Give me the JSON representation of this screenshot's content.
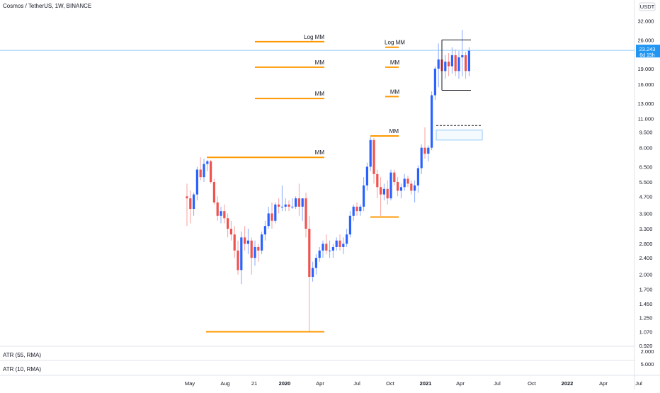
{
  "header": {
    "title": "Cosmos / TetherUS, 1W, BINANCE"
  },
  "price_scale": {
    "currency": "USDT",
    "current_price": "23.243",
    "countdown": "6d 15h",
    "tick_labels": [
      "32.000",
      "26.000",
      "19.000",
      "16.000",
      "13.000",
      "11.000",
      "9.500",
      "8.000",
      "6.500",
      "5.500",
      "4.700",
      "3.900",
      "3.300",
      "2.800",
      "2.400",
      "2.000",
      "1.700",
      "1.450",
      "1.250",
      "1.070",
      "0.920"
    ]
  },
  "indicators": [
    {
      "label": "ATR (55, RMA)",
      "scale_value": "2.000"
    },
    {
      "label": "ATR (10, RMA)",
      "scale_value": "5.000"
    }
  ],
  "time_axis": {
    "labels": [
      "May",
      "Aug",
      "21",
      "2020",
      "Apr",
      "Jul",
      "Oct",
      "2021",
      "Apr",
      "Jul",
      "Oct",
      "2022",
      "Apr",
      "Jul"
    ]
  },
  "annotations": [
    {
      "label": "Log MM",
      "price": 25.5
    },
    {
      "label": "MM",
      "price": 19.3
    },
    {
      "label": "MM",
      "price": 13.7
    },
    {
      "label": "MM",
      "price": 7.2
    },
    {
      "label": "Log MM",
      "price": 24.0
    },
    {
      "label": "MM",
      "price": 19.3
    },
    {
      "label": "MM",
      "price": 14.0
    },
    {
      "label": "MM",
      "price": 9.1
    }
  ],
  "colors": {
    "up": "#2962ff",
    "down": "#ef5350",
    "level": "#ff9800",
    "price_line": "#90caf9",
    "box": "#131722"
  },
  "chart_data": {
    "type": "candlestick",
    "title": "Cosmos / TetherUS, 1W, BINANCE",
    "scale": "log",
    "ylim": [
      0.92,
      35
    ],
    "xlabel": "",
    "ylabel": "",
    "candles": [
      [
        4.7,
        5.4,
        3.4,
        4.6
      ],
      [
        4.6,
        5.0,
        3.5,
        4.1
      ],
      [
        4.1,
        4.9,
        3.8,
        4.8
      ],
      [
        4.8,
        6.5,
        4.5,
        6.3
      ],
      [
        6.3,
        7.2,
        5.6,
        5.8
      ],
      [
        5.8,
        7.1,
        5.5,
        6.7
      ],
      [
        6.7,
        7.0,
        6.2,
        6.9
      ],
      [
        6.9,
        7.0,
        5.4,
        5.5
      ],
      [
        5.5,
        5.7,
        4.3,
        4.4
      ],
      [
        4.4,
        4.7,
        3.6,
        3.8
      ],
      [
        3.8,
        4.2,
        3.5,
        4.0
      ],
      [
        4.0,
        4.3,
        3.5,
        3.7
      ],
      [
        3.7,
        3.9,
        3.0,
        3.3
      ],
      [
        3.3,
        3.6,
        2.9,
        3.1
      ],
      [
        3.1,
        3.4,
        2.4,
        2.6
      ],
      [
        2.6,
        2.9,
        2.0,
        2.1
      ],
      [
        2.1,
        3.2,
        1.8,
        3.0
      ],
      [
        3.0,
        3.4,
        2.6,
        2.8
      ],
      [
        2.8,
        3.3,
        2.5,
        2.9
      ],
      [
        2.9,
        3.0,
        2.0,
        2.4
      ],
      [
        2.4,
        2.9,
        2.2,
        2.7
      ],
      [
        2.7,
        2.8,
        2.3,
        2.6
      ],
      [
        2.6,
        3.2,
        2.5,
        3.1
      ],
      [
        3.1,
        3.6,
        2.9,
        3.4
      ],
      [
        3.4,
        4.2,
        3.3,
        3.9
      ],
      [
        3.9,
        4.4,
        3.3,
        3.6
      ],
      [
        3.6,
        4.4,
        3.5,
        4.3
      ],
      [
        4.3,
        4.6,
        3.9,
        4.2
      ],
      [
        4.2,
        5.3,
        4.0,
        4.2
      ],
      [
        4.2,
        4.6,
        4.0,
        4.3
      ],
      [
        4.3,
        4.5,
        4.0,
        4.2
      ],
      [
        4.2,
        4.6,
        4.1,
        4.2
      ],
      [
        4.2,
        4.7,
        4.1,
        4.6
      ],
      [
        4.6,
        5.4,
        3.8,
        4.2
      ],
      [
        4.2,
        4.6,
        3.6,
        4.6
      ],
      [
        4.6,
        4.9,
        3.0,
        3.3
      ],
      [
        3.3,
        3.8,
        1.07,
        1.95
      ],
      [
        1.95,
        2.3,
        1.85,
        2.15
      ],
      [
        2.15,
        2.5,
        2.0,
        2.4
      ],
      [
        2.4,
        2.7,
        2.3,
        2.6
      ],
      [
        2.6,
        2.9,
        2.4,
        2.8
      ],
      [
        2.8,
        3.1,
        2.5,
        2.6
      ],
      [
        2.6,
        2.9,
        2.4,
        2.6
      ],
      [
        2.6,
        2.8,
        2.4,
        2.7
      ],
      [
        2.7,
        3.0,
        2.6,
        2.9
      ],
      [
        2.9,
        3.1,
        2.6,
        2.7
      ],
      [
        2.7,
        3.0,
        2.5,
        2.8
      ],
      [
        2.8,
        3.3,
        2.7,
        3.1
      ],
      [
        3.1,
        4.0,
        3.0,
        3.8
      ],
      [
        3.8,
        4.3,
        3.6,
        4.2
      ],
      [
        4.2,
        4.4,
        3.8,
        4.0
      ],
      [
        4.0,
        4.3,
        3.8,
        4.2
      ],
      [
        4.2,
        5.8,
        4.0,
        5.3
      ],
      [
        5.3,
        6.8,
        5.0,
        6.5
      ],
      [
        6.5,
        9.0,
        6.2,
        8.7
      ],
      [
        8.7,
        8.9,
        5.4,
        6.0
      ],
      [
        6.0,
        6.3,
        4.6,
        5.2
      ],
      [
        5.2,
        5.8,
        3.8,
        4.8
      ],
      [
        4.8,
        5.4,
        4.5,
        5.1
      ],
      [
        5.1,
        5.6,
        4.3,
        4.6
      ],
      [
        4.6,
        6.3,
        4.5,
        6.1
      ],
      [
        6.1,
        6.3,
        5.3,
        5.5
      ],
      [
        5.5,
        5.8,
        4.7,
        5.0
      ],
      [
        5.0,
        5.4,
        4.6,
        5.2
      ],
      [
        5.2,
        6.0,
        5.0,
        5.7
      ],
      [
        5.7,
        5.9,
        5.2,
        5.4
      ],
      [
        5.4,
        5.6,
        4.8,
        5.0
      ],
      [
        5.0,
        5.6,
        4.4,
        5.3
      ],
      [
        5.3,
        6.6,
        4.9,
        6.4
      ],
      [
        6.4,
        8.3,
        6.0,
        8.0
      ],
      [
        8.0,
        10.0,
        7.1,
        7.5
      ],
      [
        7.5,
        8.2,
        6.9,
        8.0
      ],
      [
        8.0,
        14.8,
        7.8,
        14.2
      ],
      [
        14.2,
        19.5,
        13.5,
        19.0
      ],
      [
        19.0,
        25.0,
        15.5,
        21.0
      ],
      [
        21.0,
        24.0,
        17.5,
        18.5
      ],
      [
        18.5,
        22.0,
        17.0,
        20.5
      ],
      [
        20.5,
        22.5,
        17.5,
        19.5
      ],
      [
        19.5,
        24.0,
        18.0,
        22.0
      ],
      [
        22.0,
        23.5,
        17.5,
        18.5
      ],
      [
        18.5,
        23.0,
        17.0,
        21.5
      ],
      [
        21.5,
        29.0,
        17.5,
        22.0
      ],
      [
        22.0,
        22.8,
        17.0,
        18.5
      ],
      [
        18.5,
        24.0,
        17.5,
        23.2
      ]
    ]
  }
}
